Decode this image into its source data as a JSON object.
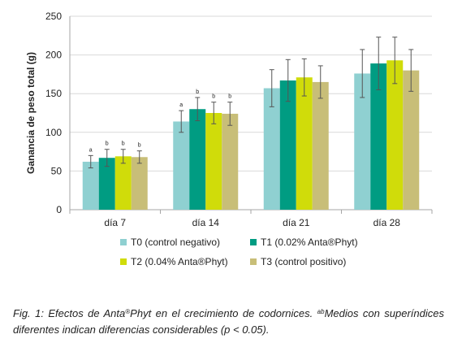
{
  "chart_data": {
    "type": "bar",
    "categories": [
      "día 7",
      "día 14",
      "día 21",
      "día 28"
    ],
    "ylabel": "Ganancia de peso total (g)",
    "ylim": [
      0,
      250
    ],
    "yticks": [
      "0",
      "50",
      "100",
      "150",
      "200",
      "250"
    ],
    "grid": true,
    "legend_position": "bottom",
    "series": [
      {
        "name": "T0 (control negativo)",
        "color": "#8fd0d1",
        "values": [
          62,
          114,
          157,
          176
        ],
        "errors": [
          8,
          14,
          24,
          31
        ],
        "labels": [
          "a",
          "a",
          "",
          ""
        ]
      },
      {
        "name": "T1 (0.02% Anta®Phyt)",
        "color": "#009c82",
        "values": [
          67,
          130,
          167,
          189
        ],
        "errors": [
          11,
          15,
          27,
          34
        ],
        "labels": [
          "b",
          "b",
          "",
          ""
        ]
      },
      {
        "name": "T2 (0.04% Anta®Phyt)",
        "color": "#d0dc0a",
        "values": [
          69,
          125,
          171,
          193
        ],
        "errors": [
          9,
          14,
          24,
          30
        ],
        "labels": [
          "b",
          "b",
          "",
          ""
        ]
      },
      {
        "name": "T3 (control positivo)",
        "color": "#c8be78",
        "values": [
          68,
          124,
          165,
          180
        ],
        "errors": [
          8,
          15,
          21,
          27
        ],
        "labels": [
          "b",
          "b",
          "",
          ""
        ]
      }
    ]
  },
  "caption": {
    "prefix": "Fig. 1: Efectos de Anta",
    "reg": "®",
    "after_reg": "Phyt en el crecimiento de codornices. ",
    "sup": "ab",
    "rest": "Medios con superíndices diferentes indican diferencias considerables (p < 0.05)."
  }
}
